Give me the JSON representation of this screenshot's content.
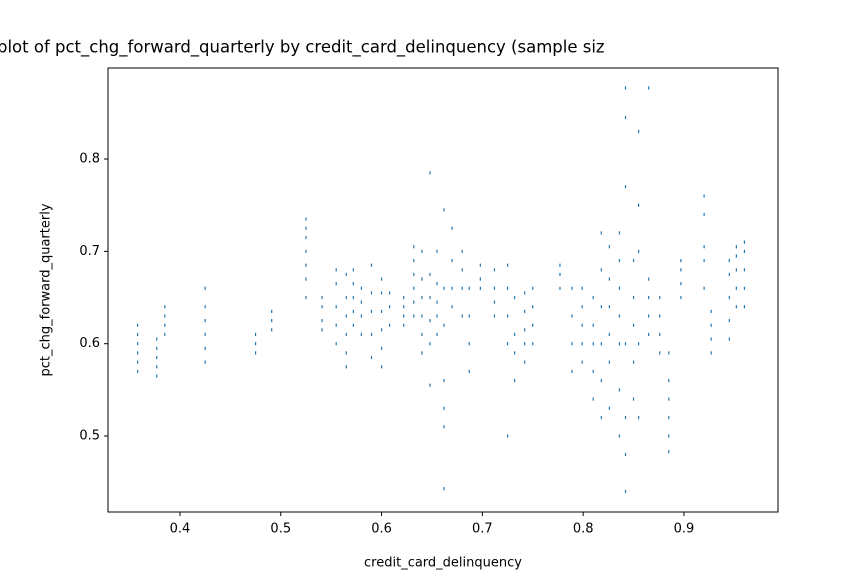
{
  "chart_data": {
    "type": "scatter",
    "title": "plot of pct_chg_forward_quarterly by credit_card_delinquency (sample siz",
    "x_label": "credit_card_delinquency",
    "y_label": "pct_chg_forward_quarterly",
    "color": "#1f77b4",
    "x": [
      0.358,
      0.358,
      0.358,
      0.358,
      0.358,
      0.358,
      0.377,
      0.377,
      0.377,
      0.377,
      0.377,
      0.385,
      0.385,
      0.385,
      0.385,
      0.425,
      0.425,
      0.425,
      0.425,
      0.425,
      0.425,
      0.475,
      0.475,
      0.475,
      0.491,
      0.491,
      0.491,
      0.525,
      0.525,
      0.525,
      0.525,
      0.525,
      0.525,
      0.525,
      0.541,
      0.541,
      0.541,
      0.541,
      0.555,
      0.555,
      0.555,
      0.555,
      0.555,
      0.565,
      0.565,
      0.565,
      0.565,
      0.565,
      0.565,
      0.572,
      0.572,
      0.572,
      0.572,
      0.572,
      0.58,
      0.58,
      0.58,
      0.58,
      0.59,
      0.59,
      0.59,
      0.59,
      0.59,
      0.6,
      0.6,
      0.6,
      0.6,
      0.6,
      0.6,
      0.608,
      0.608,
      0.608,
      0.622,
      0.622,
      0.622,
      0.622,
      0.632,
      0.632,
      0.632,
      0.632,
      0.632,
      0.632,
      0.64,
      0.64,
      0.64,
      0.64,
      0.64,
      0.64,
      0.648,
      0.648,
      0.648,
      0.648,
      0.648,
      0.648,
      0.655,
      0.655,
      0.655,
      0.655,
      0.655,
      0.662,
      0.662,
      0.662,
      0.662,
      0.662,
      0.662,
      0.662,
      0.67,
      0.67,
      0.67,
      0.67,
      0.68,
      0.68,
      0.68,
      0.68,
      0.687,
      0.687,
      0.687,
      0.687,
      0.698,
      0.698,
      0.698,
      0.712,
      0.712,
      0.712,
      0.712,
      0.725,
      0.725,
      0.725,
      0.725,
      0.725,
      0.732,
      0.732,
      0.732,
      0.732,
      0.742,
      0.742,
      0.742,
      0.742,
      0.742,
      0.75,
      0.75,
      0.75,
      0.75,
      0.777,
      0.777,
      0.777,
      0.789,
      0.789,
      0.789,
      0.789,
      0.799,
      0.799,
      0.799,
      0.799,
      0.799,
      0.81,
      0.81,
      0.81,
      0.81,
      0.81,
      0.818,
      0.818,
      0.818,
      0.818,
      0.818,
      0.818,
      0.826,
      0.826,
      0.826,
      0.826,
      0.826,
      0.826,
      0.836,
      0.836,
      0.836,
      0.836,
      0.836,
      0.836,
      0.836,
      0.842,
      0.842,
      0.842,
      0.842,
      0.842,
      0.842,
      0.842,
      0.85,
      0.85,
      0.85,
      0.85,
      0.85,
      0.855,
      0.855,
      0.855,
      0.855,
      0.855,
      0.865,
      0.865,
      0.865,
      0.865,
      0.865,
      0.876,
      0.876,
      0.876,
      0.876,
      0.885,
      0.885,
      0.885,
      0.885,
      0.885,
      0.885,
      0.897,
      0.897,
      0.897,
      0.897,
      0.92,
      0.92,
      0.92,
      0.92,
      0.92,
      0.927,
      0.927,
      0.927,
      0.927,
      0.945,
      0.945,
      0.945,
      0.945,
      0.945,
      0.952,
      0.952,
      0.952,
      0.952,
      0.952,
      0.96,
      0.96,
      0.96,
      0.96,
      0.96
    ],
    "y": [
      0.57,
      0.58,
      0.59,
      0.6,
      0.61,
      0.62,
      0.565,
      0.575,
      0.585,
      0.595,
      0.605,
      0.61,
      0.62,
      0.63,
      0.64,
      0.58,
      0.595,
      0.61,
      0.625,
      0.64,
      0.66,
      0.59,
      0.6,
      0.61,
      0.615,
      0.625,
      0.635,
      0.65,
      0.67,
      0.685,
      0.7,
      0.715,
      0.725,
      0.735,
      0.615,
      0.625,
      0.64,
      0.65,
      0.6,
      0.62,
      0.64,
      0.665,
      0.68,
      0.575,
      0.59,
      0.61,
      0.63,
      0.65,
      0.675,
      0.62,
      0.635,
      0.65,
      0.665,
      0.68,
      0.61,
      0.63,
      0.645,
      0.66,
      0.585,
      0.61,
      0.635,
      0.655,
      0.685,
      0.575,
      0.595,
      0.615,
      0.635,
      0.655,
      0.67,
      0.62,
      0.64,
      0.655,
      0.62,
      0.63,
      0.64,
      0.65,
      0.63,
      0.645,
      0.66,
      0.675,
      0.69,
      0.705,
      0.59,
      0.61,
      0.63,
      0.65,
      0.67,
      0.7,
      0.555,
      0.6,
      0.625,
      0.65,
      0.675,
      0.785,
      0.61,
      0.63,
      0.645,
      0.665,
      0.7,
      0.443,
      0.51,
      0.53,
      0.56,
      0.62,
      0.66,
      0.745,
      0.64,
      0.66,
      0.69,
      0.725,
      0.63,
      0.66,
      0.68,
      0.7,
      0.57,
      0.6,
      0.63,
      0.66,
      0.66,
      0.67,
      0.685,
      0.63,
      0.645,
      0.66,
      0.68,
      0.5,
      0.6,
      0.63,
      0.66,
      0.685,
      0.56,
      0.59,
      0.61,
      0.65,
      0.58,
      0.6,
      0.615,
      0.635,
      0.655,
      0.6,
      0.62,
      0.64,
      0.66,
      0.66,
      0.675,
      0.685,
      0.57,
      0.6,
      0.63,
      0.66,
      0.58,
      0.6,
      0.62,
      0.64,
      0.66,
      0.54,
      0.57,
      0.6,
      0.62,
      0.65,
      0.52,
      0.56,
      0.6,
      0.64,
      0.68,
      0.72,
      0.53,
      0.58,
      0.61,
      0.64,
      0.67,
      0.705,
      0.5,
      0.55,
      0.6,
      0.63,
      0.66,
      0.69,
      0.72,
      0.44,
      0.48,
      0.52,
      0.6,
      0.77,
      0.845,
      0.877,
      0.54,
      0.58,
      0.62,
      0.65,
      0.69,
      0.52,
      0.6,
      0.7,
      0.75,
      0.83,
      0.61,
      0.63,
      0.65,
      0.67,
      0.877,
      0.59,
      0.61,
      0.63,
      0.65,
      0.483,
      0.5,
      0.52,
      0.54,
      0.56,
      0.59,
      0.65,
      0.665,
      0.68,
      0.69,
      0.66,
      0.69,
      0.705,
      0.74,
      0.76,
      0.59,
      0.605,
      0.62,
      0.635,
      0.605,
      0.625,
      0.65,
      0.675,
      0.69,
      0.64,
      0.66,
      0.68,
      0.695,
      0.705,
      0.64,
      0.66,
      0.68,
      0.7,
      0.71
    ],
    "xlim": [
      0.3286,
      0.9933
    ],
    "ylim": [
      0.4177,
      0.8986
    ],
    "xticks": [
      0.4,
      0.5,
      0.6,
      0.7,
      0.8,
      0.9
    ],
    "yticks": [
      0.5,
      0.6,
      0.7,
      0.8
    ]
  }
}
